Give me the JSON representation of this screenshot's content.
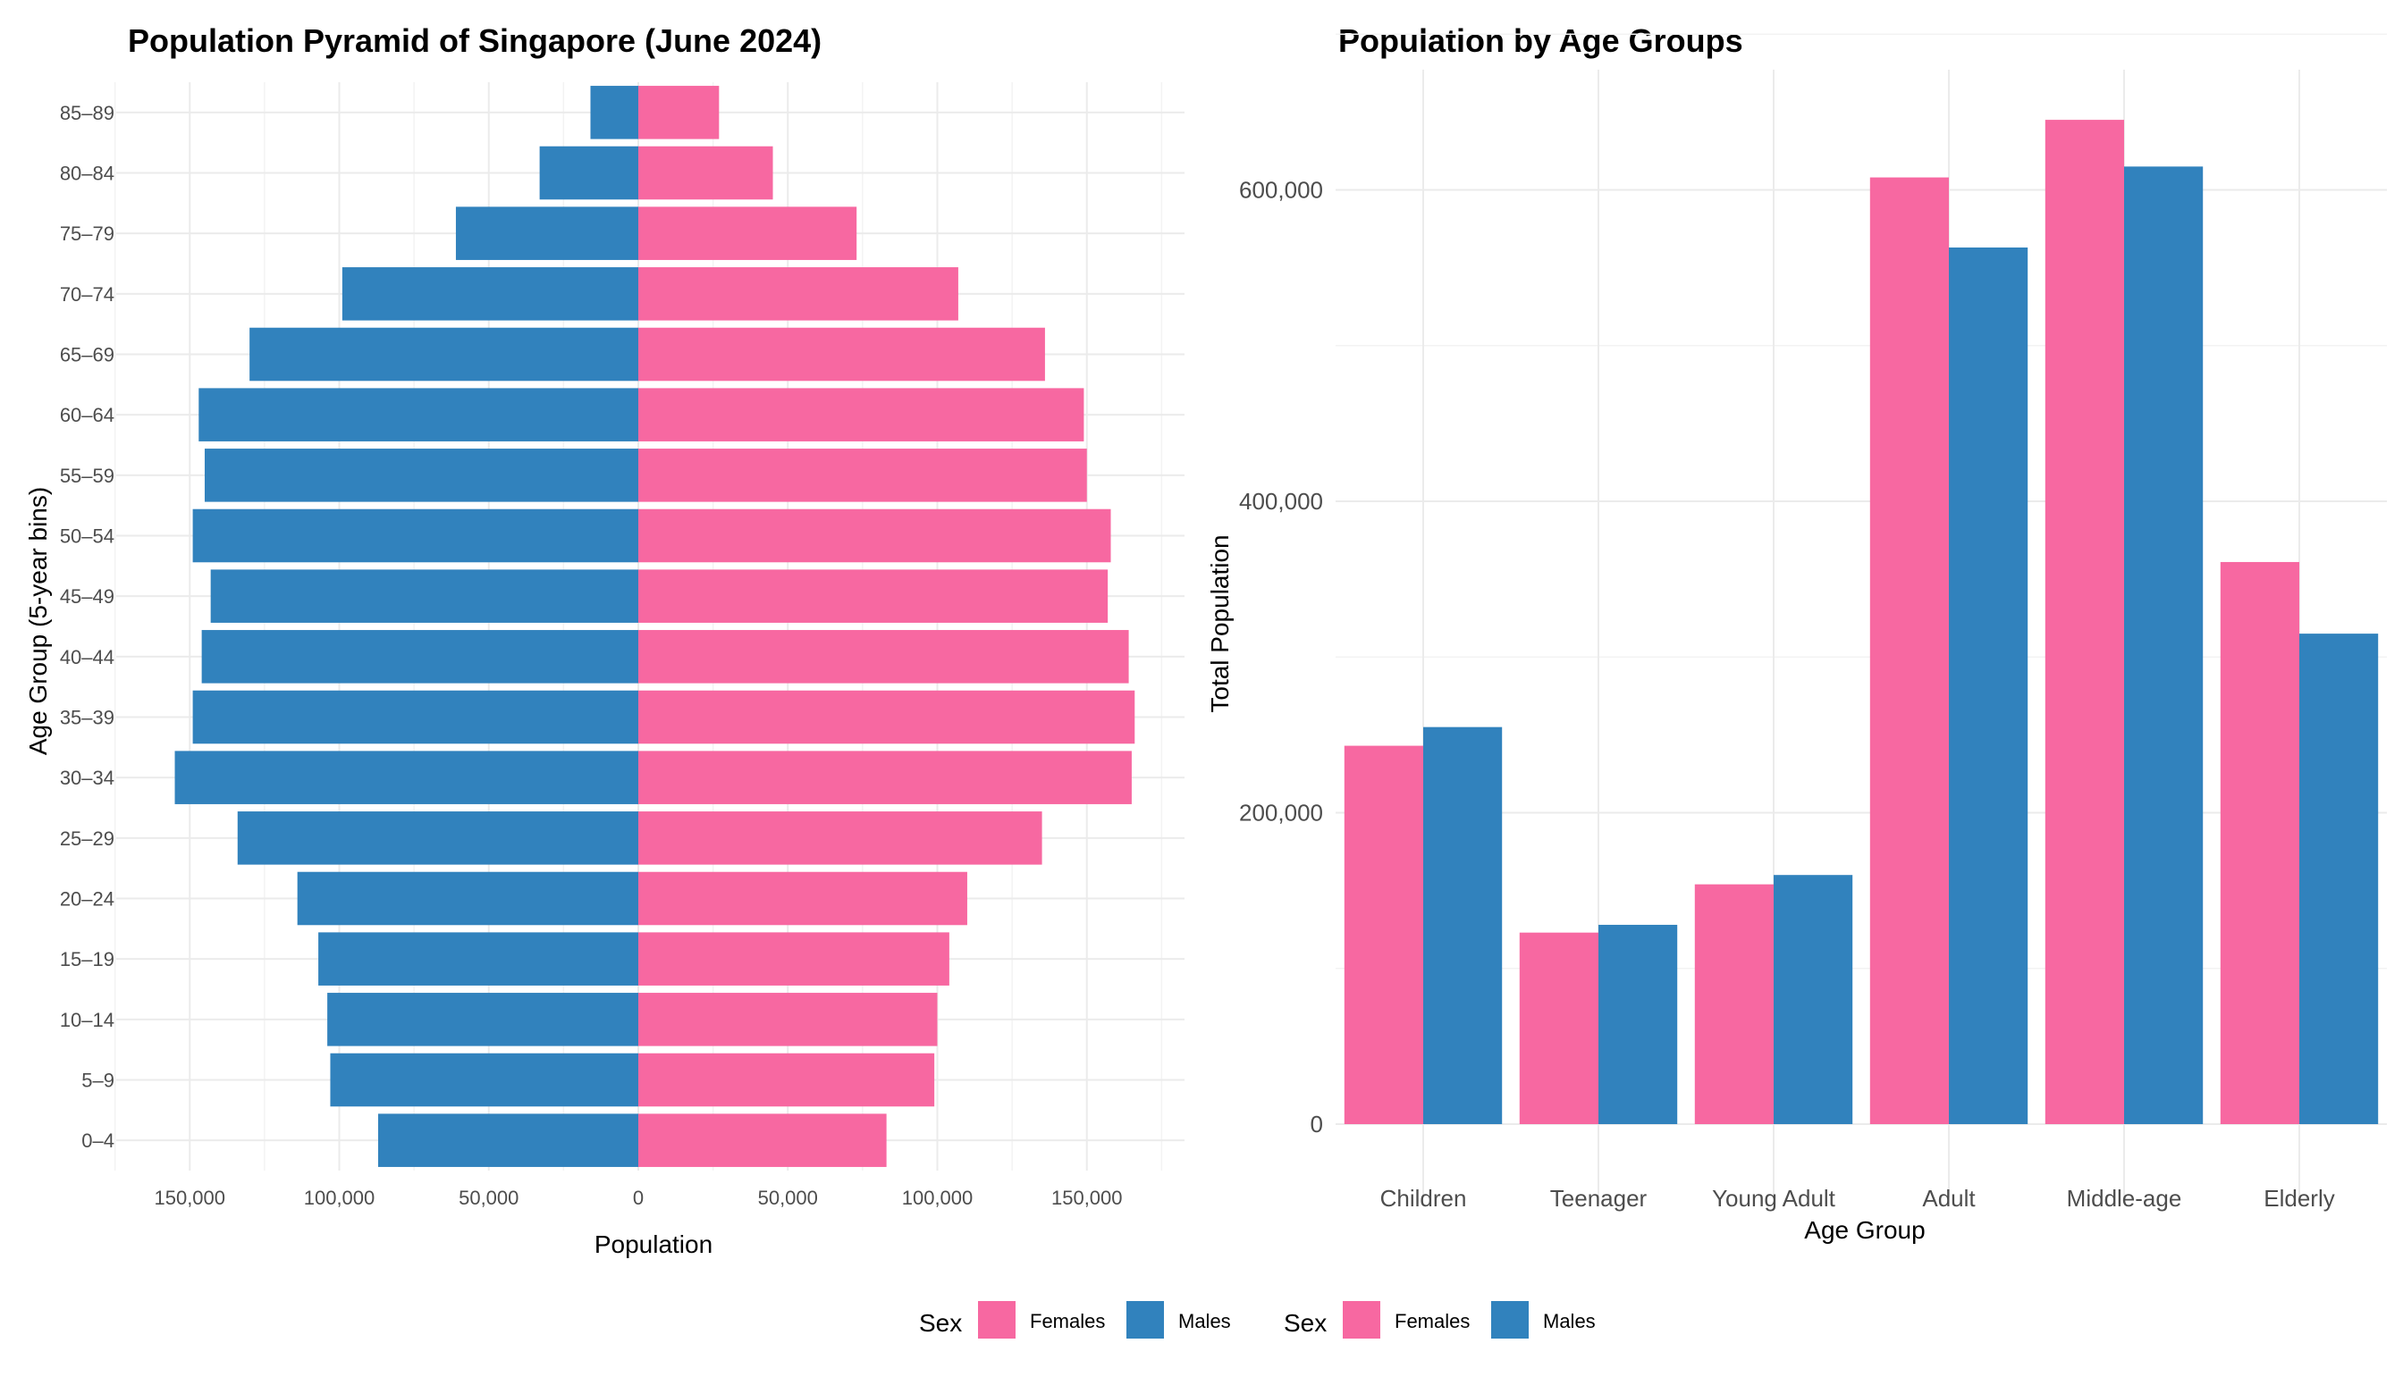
{
  "chart_data": [
    {
      "type": "bar",
      "orientation": "horizontal-pyramid",
      "title": "Population Pyramid of Singapore (June 2024)",
      "xlabel": "Population",
      "ylabel": "Age Group (5-year bins)",
      "categories": [
        "0–4",
        "5–9",
        "10–14",
        "15–19",
        "20–24",
        "25–29",
        "30–34",
        "35–39",
        "40–44",
        "45–49",
        "50–54",
        "55–59",
        "60–64",
        "65–69",
        "70–74",
        "75–79",
        "80–84",
        "85–89"
      ],
      "series": [
        {
          "name": "Females",
          "color": "#F768A1",
          "values": [
            83000,
            99000,
            100000,
            104000,
            110000,
            135000,
            165000,
            166000,
            164000,
            157000,
            158000,
            150000,
            149000,
            136000,
            107000,
            73000,
            45000,
            27000
          ]
        },
        {
          "name": "Males",
          "color": "#3182BD",
          "values": [
            87000,
            103000,
            104000,
            107000,
            114000,
            134000,
            155000,
            149000,
            146000,
            143000,
            149000,
            145000,
            147000,
            130000,
            99000,
            61000,
            33000,
            16000
          ]
        }
      ],
      "xlim": [
        -180000,
        180000
      ],
      "xticks": [
        -150000,
        -100000,
        -50000,
        0,
        50000,
        100000,
        150000
      ],
      "xtick_labels": [
        "150,000",
        "100,000",
        "50,000",
        "0",
        "50,000",
        "100,000",
        "150,000"
      ],
      "grid": true
    },
    {
      "type": "bar",
      "orientation": "vertical-grouped",
      "title": "Population by Age Groups",
      "xlabel": "Age Group",
      "ylabel": "Total Population",
      "categories": [
        "Children",
        "Teenager",
        "Young Adult",
        "Adult",
        "Middle-age",
        "Elderly"
      ],
      "series": [
        {
          "name": "Females",
          "color": "#F768A1",
          "values": [
            243000,
            123000,
            154000,
            608000,
            645000,
            361000
          ]
        },
        {
          "name": "Males",
          "color": "#3182BD",
          "values": [
            255000,
            128000,
            160000,
            563000,
            615000,
            315000
          ]
        }
      ],
      "ylim": [
        0,
        650000
      ],
      "yticks": [
        0,
        200000,
        400000,
        600000
      ],
      "ytick_labels": [
        "0",
        "200,000",
        "400,000",
        "600,000"
      ],
      "grid": true
    }
  ],
  "legends": [
    {
      "title": "Sex",
      "items": [
        {
          "label": "Females",
          "color": "#F768A1"
        },
        {
          "label": "Males",
          "color": "#3182BD"
        }
      ]
    },
    {
      "title": "Sex",
      "items": [
        {
          "label": "Females",
          "color": "#F768A1"
        },
        {
          "label": "Males",
          "color": "#3182BD"
        }
      ]
    }
  ],
  "legend_position": "bottom"
}
